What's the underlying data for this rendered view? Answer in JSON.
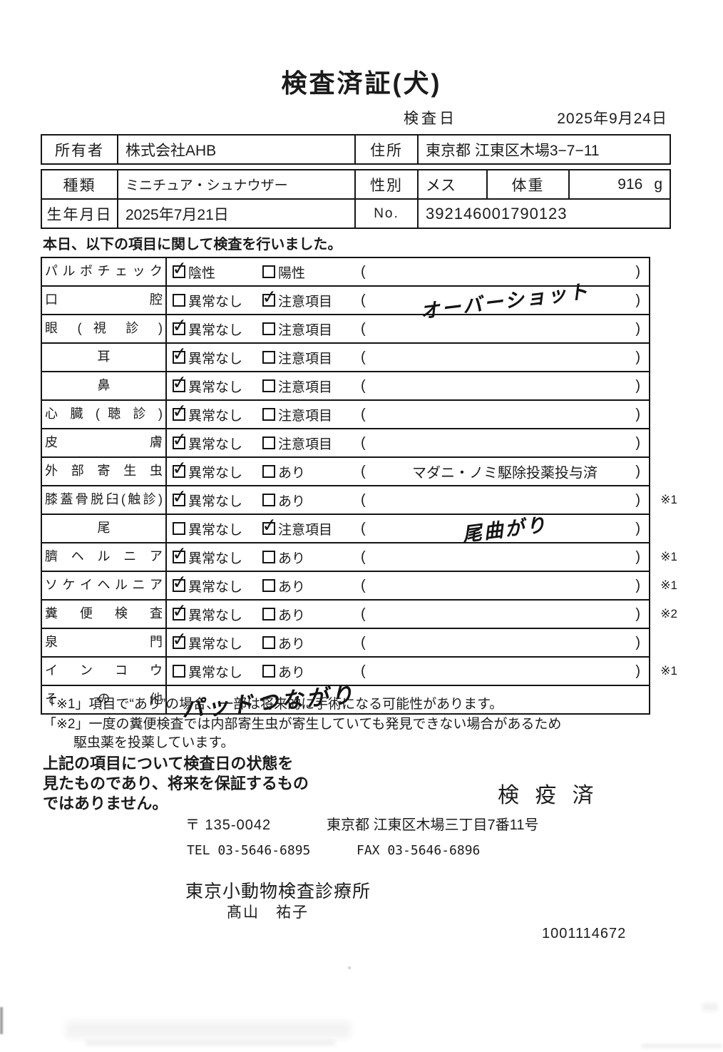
{
  "title": "検査済証(犬)",
  "date": {
    "label": "検査日",
    "value": "2025年9月24日"
  },
  "owner": {
    "owner_label": "所有者",
    "owner_value": "株式会社AHB",
    "address_label": "住所",
    "address_value": "東京都 江東区木場3−7−11"
  },
  "info": {
    "breed_label": "種類",
    "breed_value": "ミニチュア・シュナウザー",
    "sex_label": "性別",
    "sex_value": "メス",
    "weight_label": "体重",
    "weight_value": "916",
    "weight_unit": "g",
    "dob_label": "生年月日",
    "dob_value": "2025年7月21日",
    "no_label": "No.",
    "no_value": "392146001790123"
  },
  "intro": "本日、以下の項目に関して検査を行いました。",
  "parens": {
    "open": "(",
    "close": ")"
  },
  "checklist": [
    {
      "label": "パ ル ボ チ ェ ッ ク",
      "opt1": "陰性",
      "opt1_checked": true,
      "opt2": "陽性",
      "note": "",
      "mark": ""
    },
    {
      "label": "口 腔",
      "opt1": "異常なし",
      "opt2": "注意項目",
      "opt2_checked": true,
      "hand": true,
      "note": "オーバーショット",
      "mark": ""
    },
    {
      "label": "眼 ( 視 診 )",
      "opt1": "異常なし",
      "opt1_checked": true,
      "opt2": "注意項目",
      "note": "",
      "mark": ""
    },
    {
      "label": "耳",
      "center": true,
      "opt1": "異常なし",
      "opt1_checked": true,
      "opt2": "注意項目",
      "note": "",
      "mark": ""
    },
    {
      "label": "鼻",
      "center": true,
      "opt1": "異常なし",
      "opt1_checked": true,
      "opt2": "注意項目",
      "note": "",
      "mark": ""
    },
    {
      "label": "心 臓 ( 聴 診 )",
      "opt1": "異常なし",
      "opt1_checked": true,
      "opt2": "注意項目",
      "note": "",
      "mark": ""
    },
    {
      "label": "皮 膚",
      "opt1": "異常なし",
      "opt1_checked": true,
      "opt2": "注意項目",
      "note": "",
      "mark": ""
    },
    {
      "label": "外 部 寄 生 虫",
      "opt1": "異常なし",
      "opt1_checked": true,
      "opt2": "あり",
      "note": "マダニ・ノミ駆除投薬投与済",
      "mark": ""
    },
    {
      "label": "膝蓋骨脱臼(触診)",
      "opt1": "異常なし",
      "opt1_checked": true,
      "opt2": "あり",
      "note": "",
      "mark": "※1"
    },
    {
      "label": "尾",
      "center": true,
      "opt1": "異常なし",
      "opt2": "注意項目",
      "opt2_checked": true,
      "hand": true,
      "note": "尾曲がり",
      "mark": ""
    },
    {
      "label": "臍 ヘ ル ニ ア",
      "opt1": "異常なし",
      "opt1_checked": true,
      "opt2": "あり",
      "note": "",
      "mark": "※1"
    },
    {
      "label": "ソ ケ イ ヘ ル ニ ア",
      "opt1": "異常なし",
      "opt1_checked": true,
      "opt2": "あり",
      "note": "",
      "mark": "※1"
    },
    {
      "label": "糞 便 検 査",
      "opt1": "異常なし",
      "opt1_checked": true,
      "opt2": "あり",
      "note": "",
      "mark": "※2"
    },
    {
      "label": "泉 門",
      "opt1": "異常なし",
      "opt1_checked": true,
      "opt2": "あり",
      "note": "",
      "mark": ""
    },
    {
      "label": "イ ン コ ウ",
      "opt1": "異常なし",
      "opt2": "あり",
      "note": "",
      "mark": "※1"
    },
    {
      "label": "そ の 他",
      "other": true,
      "hand": true,
      "opt1": "",
      "opt2": "",
      "note": "パッドつながり",
      "mark": ""
    }
  ],
  "footnotes": {
    "line1": "「※1」項目で“あり”の場合、一部は将来的に手術になる可能性があります。",
    "line2a": "「※2」一度の糞便検査では内部寄生虫が寄生していても発見できない場合があるため",
    "line2b": "駆虫薬を投薬しています。"
  },
  "disclaimer": {
    "line1": "上記の項目について検査日の状態を",
    "line2": "見たものであり、将来を保証するもの",
    "line3": "ではありません。"
  },
  "stamp": "検 疫 済",
  "footer": {
    "postal": "〒 135-0042",
    "address": "東京都 江東区木場三丁目7番11号",
    "tel": "TEL 03-5646-6895",
    "fax": "FAX 03-5646-6896",
    "clinic": "東京小動物検査診療所",
    "vet": "髙山　祐子",
    "serial": "1001114672"
  }
}
